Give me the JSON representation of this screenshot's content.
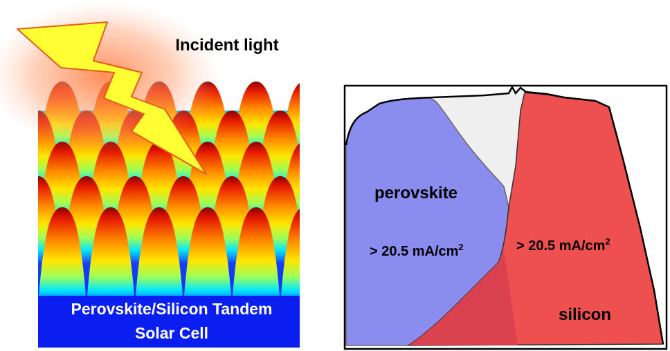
{
  "left_panel": {
    "incident_light_label": "Incident light",
    "device_label_line1": "Perovskite/Silicon Tandem",
    "device_label_line2": "Solar Cell"
  },
  "right_panel": {
    "perovskite_label": "perovskite",
    "perovskite_current": "> 20.5 mA/cm",
    "perovskite_current_exp": "2",
    "silicon_current": "> 20.5 mA/cm",
    "silicon_current_exp": "2",
    "silicon_label": "silicon"
  },
  "colors": {
    "perovskite_fill": "#8a8cee",
    "silicon_fill": "#ee4f4f",
    "overlap_fill": "#d8404f",
    "loss_fill": "#efefef",
    "substrate_blue": "#0a1ef0",
    "lightning_yellow": "#ffff33"
  },
  "icons": [
    "lightning-bolt-icon"
  ]
}
